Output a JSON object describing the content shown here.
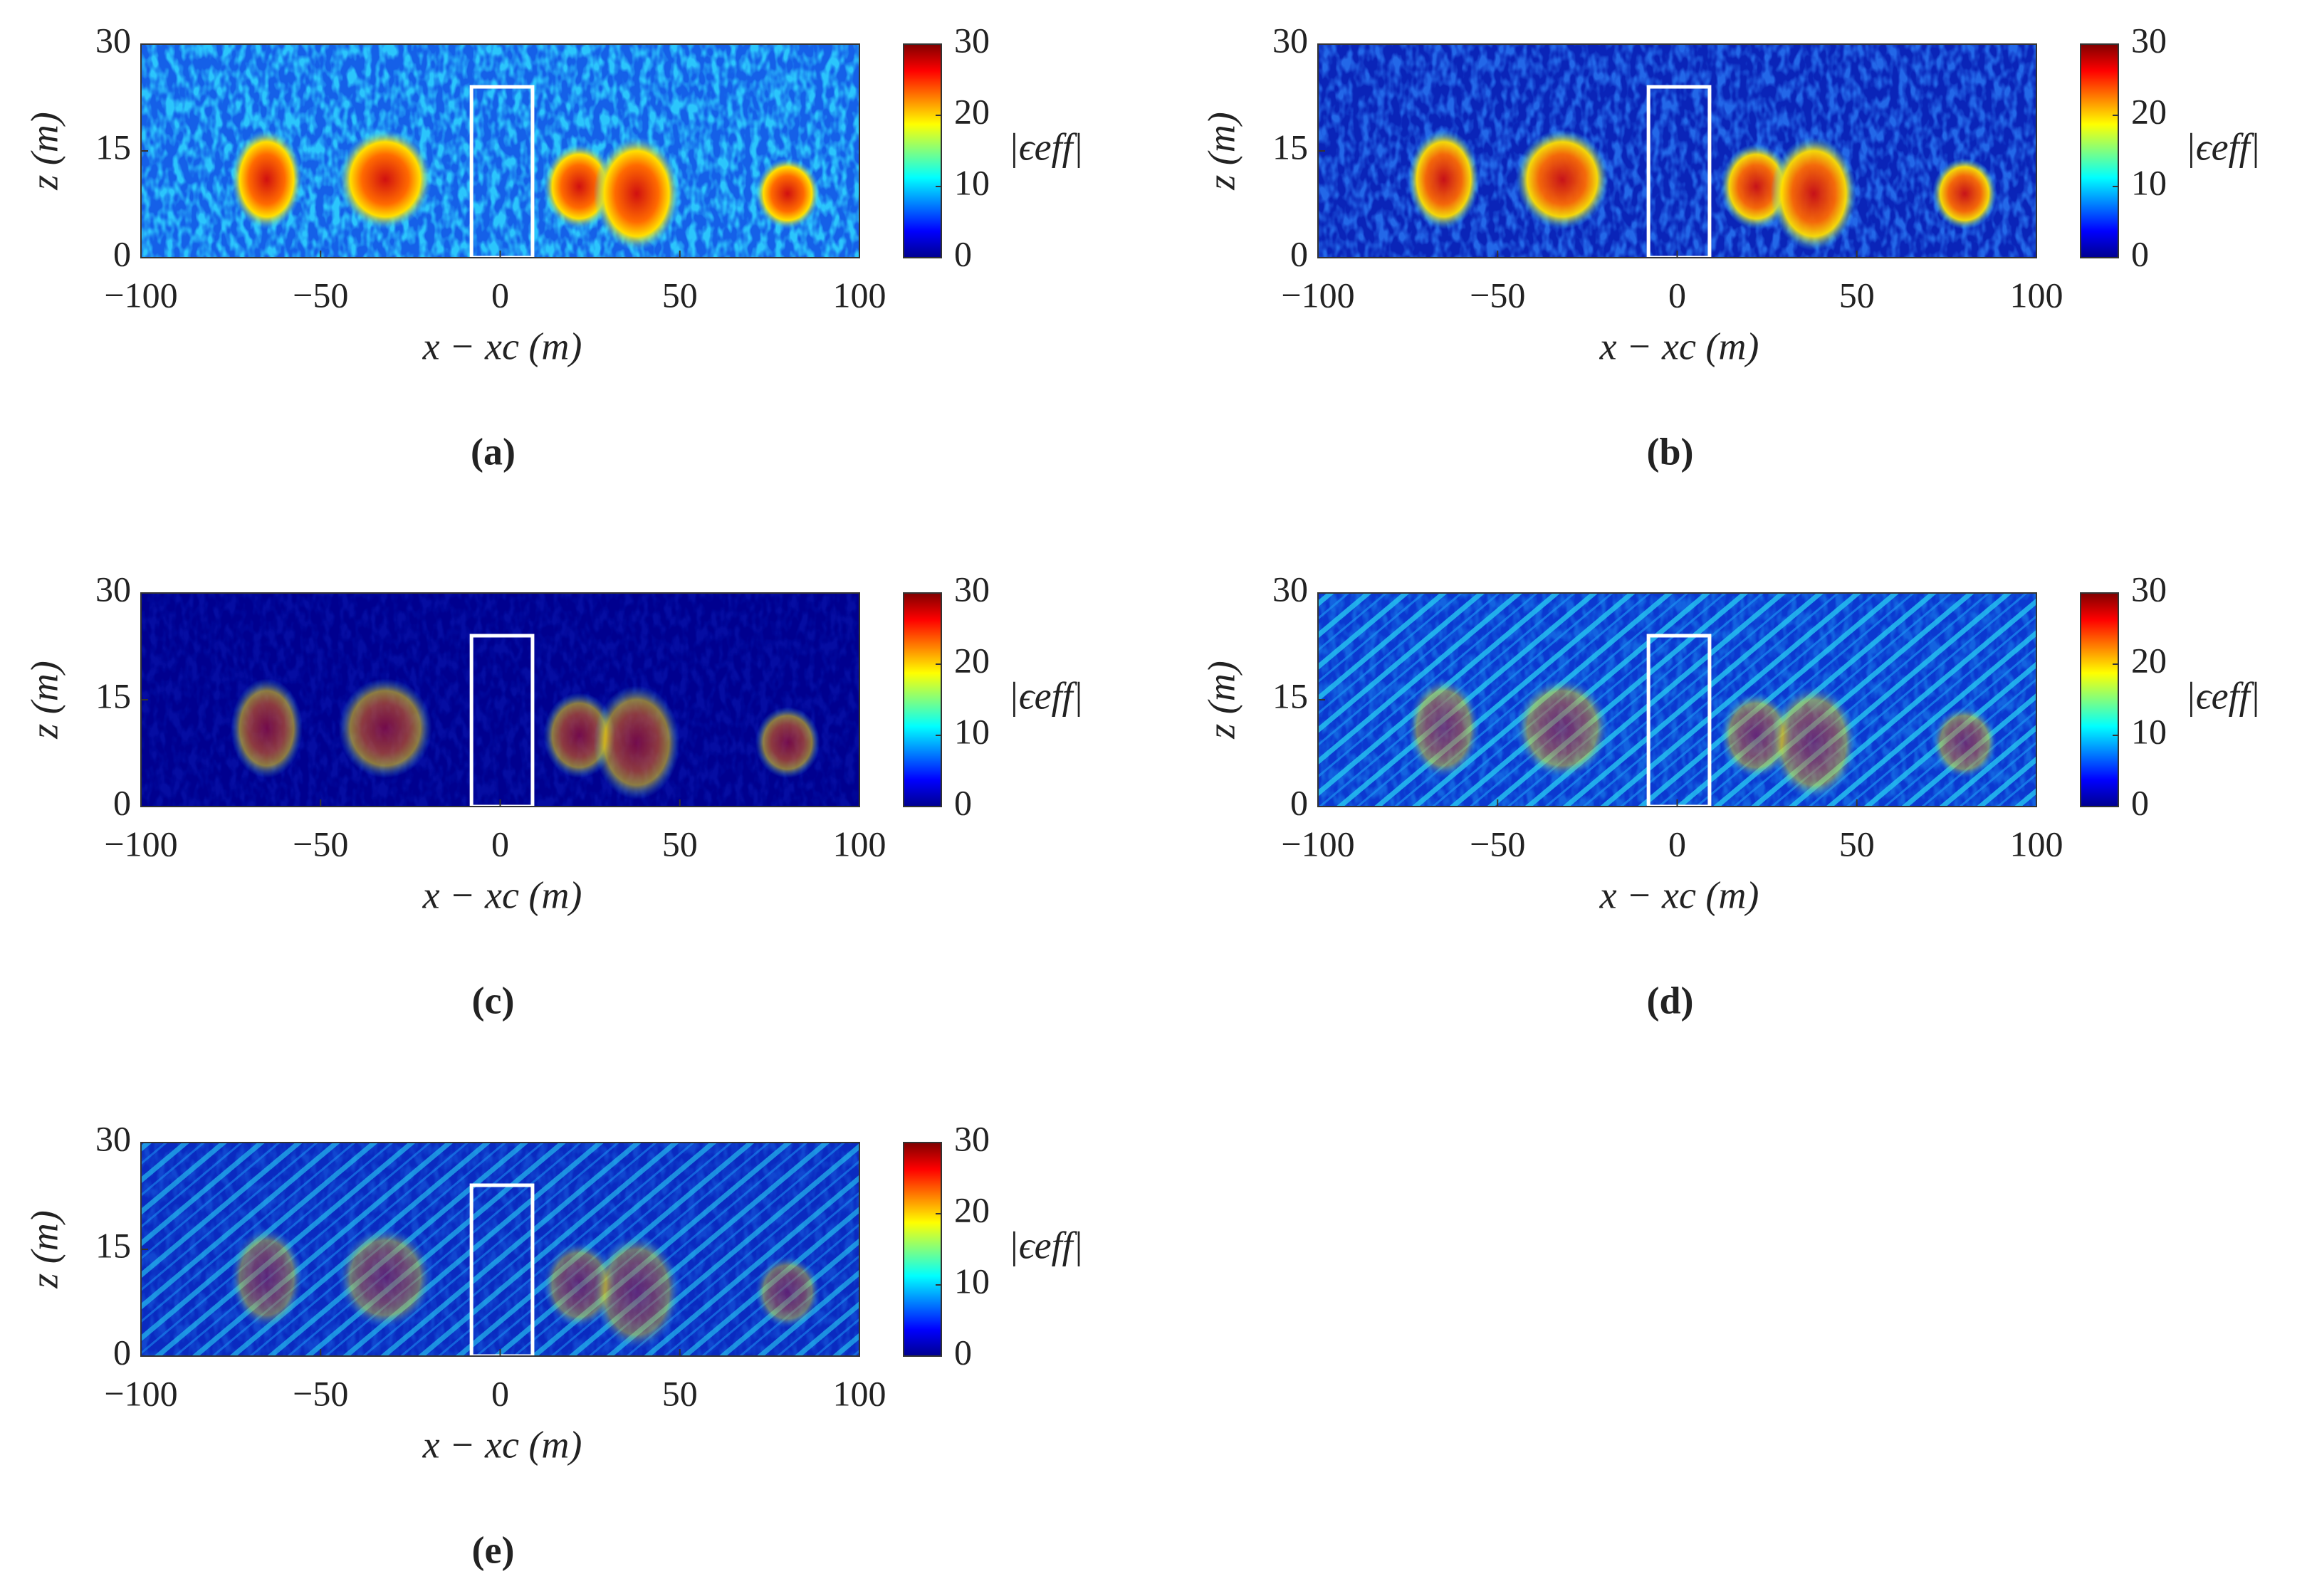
{
  "chart_data": [
    {
      "type": "heatmap",
      "caption": "(a)",
      "xlabel": "x − xc (m)",
      "ylabel": "z (m)",
      "colorbar_label": "|ϵeff|",
      "xlim": [
        -100,
        100
      ],
      "xticks": [
        {
          "value": -100,
          "label": "−100"
        },
        {
          "value": -50,
          "label": "−50"
        },
        0,
        50,
        100
      ],
      "ylim": [
        0,
        30
      ],
      "yticks": [
        0,
        15,
        30
      ],
      "clim": [
        0,
        30
      ],
      "cticks": [
        0,
        10,
        20,
        30
      ],
      "region": {
        "x": [
          -8,
          9
        ],
        "z": [
          0,
          24
        ],
        "color": "#ffffff"
      }
    },
    {
      "type": "heatmap",
      "caption": "(b)",
      "xlabel": "x − xc (m)",
      "ylabel": "z (m)",
      "colorbar_label": "|ϵeff|",
      "xlim": [
        -100,
        100
      ],
      "xticks": [
        {
          "value": -100,
          "label": "−100"
        },
        {
          "value": -50,
          "label": "−50"
        },
        0,
        50,
        100
      ],
      "ylim": [
        0,
        30
      ],
      "yticks": [
        0,
        15,
        30
      ],
      "clim": [
        0,
        30
      ],
      "cticks": [
        0,
        10,
        20,
        30
      ],
      "region": {
        "x": [
          -8,
          9
        ],
        "z": [
          0,
          24
        ],
        "color": "#ffffff"
      }
    },
    {
      "type": "heatmap",
      "caption": "(c)",
      "xlabel": "x − xc (m)",
      "ylabel": "z (m)",
      "colorbar_label": "|ϵeff|",
      "xlim": [
        -100,
        100
      ],
      "xticks": [
        {
          "value": -100,
          "label": "−100"
        },
        {
          "value": -50,
          "label": "−50"
        },
        0,
        50,
        100
      ],
      "ylim": [
        0,
        30
      ],
      "yticks": [
        0,
        15,
        30
      ],
      "clim": [
        0,
        30
      ],
      "cticks": [
        0,
        10,
        20,
        30
      ],
      "region": {
        "x": [
          -8,
          9
        ],
        "z": [
          0,
          24
        ],
        "color": "#ffffff"
      }
    },
    {
      "type": "heatmap",
      "caption": "(d)",
      "xlabel": "x − xc (m)",
      "ylabel": "z (m)",
      "colorbar_label": "|ϵeff|",
      "xlim": [
        -100,
        100
      ],
      "xticks": [
        {
          "value": -100,
          "label": "−100"
        },
        {
          "value": -50,
          "label": "−50"
        },
        0,
        50,
        100
      ],
      "ylim": [
        0,
        30
      ],
      "yticks": [
        0,
        15,
        30
      ],
      "clim": [
        0,
        30
      ],
      "cticks": [
        0,
        10,
        20,
        30
      ],
      "region": {
        "x": [
          -8,
          9
        ],
        "z": [
          0,
          24
        ],
        "color": "#ffffff"
      }
    },
    {
      "type": "heatmap",
      "caption": "(e)",
      "xlabel": "x − xc (m)",
      "ylabel": "z (m)",
      "colorbar_label": "|ϵeff|",
      "xlim": [
        -100,
        100
      ],
      "xticks": [
        {
          "value": -100,
          "label": "−100"
        },
        {
          "value": -50,
          "label": "−50"
        },
        0,
        50,
        100
      ],
      "ylim": [
        0,
        30
      ],
      "yticks": [
        0,
        15,
        30
      ],
      "clim": [
        0,
        30
      ],
      "cticks": [
        0,
        10,
        20,
        30
      ],
      "region": {
        "x": [
          -8,
          9
        ],
        "z": [
          0,
          24
        ],
        "color": "#ffffff"
      }
    }
  ]
}
